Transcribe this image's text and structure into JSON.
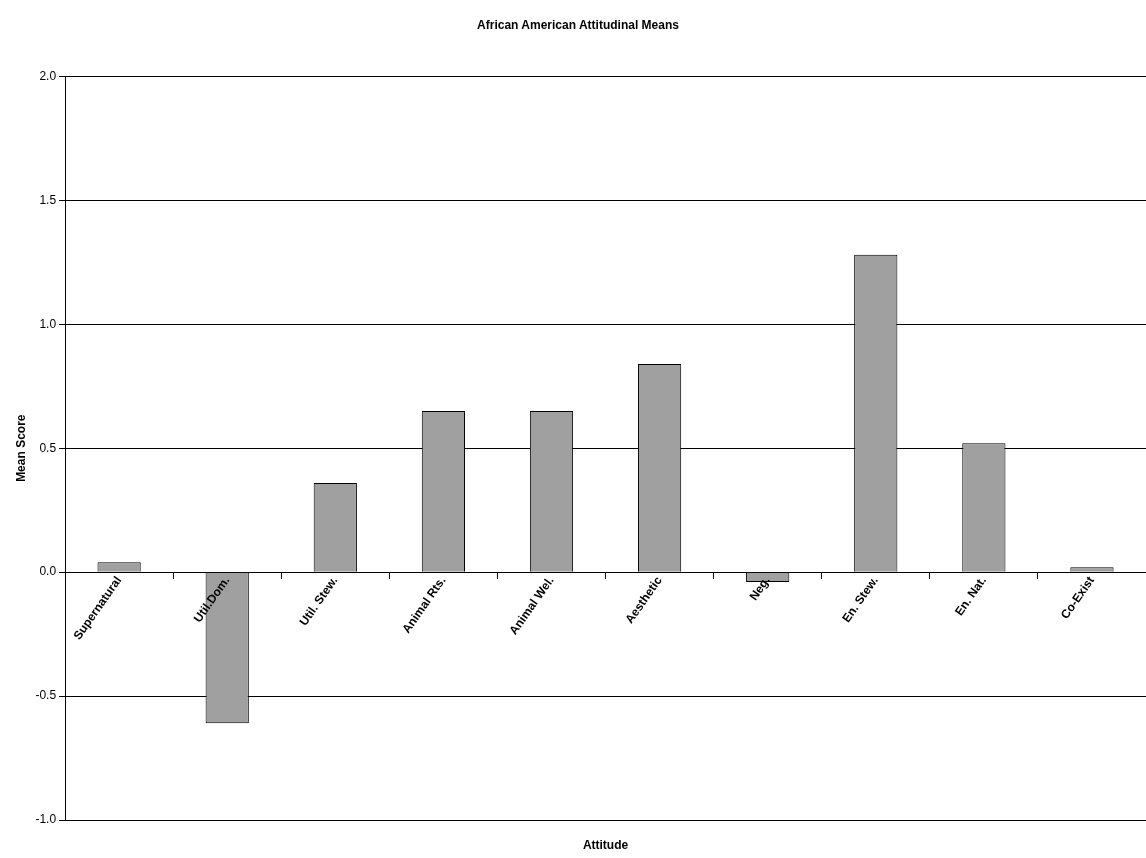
{
  "chart_data": {
    "type": "bar",
    "title": "African American Attitudinal Means",
    "xlabel": "Attitude",
    "ylabel": "Mean Score",
    "categories": [
      "Supernatural",
      "Util.Dom.",
      "Util. Stew.",
      "Animal Rts.",
      "Animal Wel.",
      "Aesthetic",
      "Neg.",
      "En. Stew.",
      "En. Nat.",
      "Co-Exist"
    ],
    "values": [
      0.04,
      -0.61,
      0.36,
      0.65,
      0.65,
      0.84,
      -0.04,
      1.28,
      0.52,
      0.02
    ],
    "color": "#a0a0a0",
    "ylim": [
      -1,
      2
    ],
    "yticks": [
      {
        "value": -1,
        "label": "-1.0"
      },
      {
        "value": -0.5,
        "label": "-0.5"
      },
      {
        "value": 0,
        "label": "0.0"
      },
      {
        "value": 0.5,
        "label": "0.5"
      },
      {
        "value": 1,
        "label": "1.0"
      },
      {
        "value": 1.5,
        "label": "1.5"
      },
      {
        "value": 2,
        "label": "2.0"
      }
    ],
    "grid": "y",
    "legend": false
  }
}
